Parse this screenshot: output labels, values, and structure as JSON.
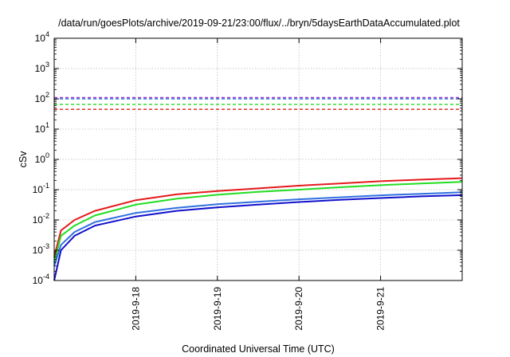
{
  "chart_data": {
    "type": "line",
    "title": "/data/run/goesPlots/archive/2019-09-21/23:00/flux/../bryn/5daysEarthDataAccumulated.plot",
    "xlabel": "Coordinated Universal Time (UTC)",
    "ylabel": "cSv",
    "x_ticks": [
      "2019-9-18",
      "2019-9-19",
      "2019-9-20",
      "2019-9-21"
    ],
    "xlim": [
      "2019-09-17 00:00",
      "2019-09-22 00:00"
    ],
    "y_scale": "log",
    "ylim": [
      0.0001,
      10000
    ],
    "y_ticks": [
      {
        "base": "10",
        "exp": "-4"
      },
      {
        "base": "10",
        "exp": "-3"
      },
      {
        "base": "10",
        "exp": "-2"
      },
      {
        "base": "10",
        "exp": "-1"
      },
      {
        "base": "10",
        "exp": "0"
      },
      {
        "base": "10",
        "exp": "1"
      },
      {
        "base": "10",
        "exp": "2"
      },
      {
        "base": "10",
        "exp": "3"
      },
      {
        "base": "10",
        "exp": "4"
      }
    ],
    "grid": true,
    "series": [
      {
        "color": "#e41a1c",
        "style": "solid",
        "x": [
          "2019-09-17 00:00",
          "2019-09-17 02:00",
          "2019-09-17 06:00",
          "2019-09-17 12:00",
          "2019-09-18 00:00",
          "2019-09-18 12:00",
          "2019-09-19 00:00",
          "2019-09-19 12:00",
          "2019-09-20 00:00",
          "2019-09-20 12:00",
          "2019-09-21 00:00",
          "2019-09-21 12:00",
          "2019-09-22 00:00"
        ],
        "y": [
          0.0006,
          0.0045,
          0.01,
          0.02,
          0.045,
          0.07,
          0.09,
          0.11,
          0.135,
          0.16,
          0.19,
          0.215,
          0.24
        ]
      },
      {
        "color": "#22dd22",
        "style": "solid",
        "x": [
          "2019-09-17 00:00",
          "2019-09-17 02:00",
          "2019-09-17 06:00",
          "2019-09-17 12:00",
          "2019-09-18 00:00",
          "2019-09-18 12:00",
          "2019-09-19 00:00",
          "2019-09-19 12:00",
          "2019-09-20 00:00",
          "2019-09-20 12:00",
          "2019-09-21 00:00",
          "2019-09-21 12:00",
          "2019-09-22 00:00"
        ],
        "y": [
          0.0004,
          0.003,
          0.0065,
          0.014,
          0.032,
          0.05,
          0.068,
          0.085,
          0.1,
          0.12,
          0.14,
          0.16,
          0.18
        ]
      },
      {
        "color": "#3070e0",
        "style": "solid",
        "x": [
          "2019-09-17 00:00",
          "2019-09-17 02:00",
          "2019-09-17 06:00",
          "2019-09-17 12:00",
          "2019-09-18 00:00",
          "2019-09-18 12:00",
          "2019-09-19 00:00",
          "2019-09-19 12:00",
          "2019-09-20 00:00",
          "2019-09-20 12:00",
          "2019-09-21 00:00",
          "2019-09-21 12:00",
          "2019-09-22 00:00"
        ],
        "y": [
          0.0003,
          0.0015,
          0.004,
          0.0085,
          0.017,
          0.025,
          0.033,
          0.04,
          0.048,
          0.056,
          0.065,
          0.073,
          0.082
        ]
      },
      {
        "color": "#1010cc",
        "style": "solid",
        "x": [
          "2019-09-17 00:00",
          "2019-09-17 02:00",
          "2019-09-17 06:00",
          "2019-09-17 12:00",
          "2019-09-18 00:00",
          "2019-09-18 12:00",
          "2019-09-19 00:00",
          "2019-09-19 12:00",
          "2019-09-20 00:00",
          "2019-09-20 12:00",
          "2019-09-21 00:00",
          "2019-09-21 12:00",
          "2019-09-22 00:00"
        ],
        "y": [
          0.0001,
          0.001,
          0.003,
          0.0065,
          0.013,
          0.02,
          0.026,
          0.032,
          0.039,
          0.046,
          0.053,
          0.06,
          0.066
        ]
      },
      {
        "color": "#e41a1c",
        "style": "dashed",
        "x": [
          "2019-09-17 00:00",
          "2019-09-22 00:00"
        ],
        "y": [
          45,
          45
        ]
      },
      {
        "color": "#22dd22",
        "style": "dashed",
        "x": [
          "2019-09-17 00:00",
          "2019-09-22 00:00"
        ],
        "y": [
          65,
          65
        ]
      },
      {
        "color": "#3070e0",
        "style": "dashed",
        "x": [
          "2019-09-17 00:00",
          "2019-09-22 00:00"
        ],
        "y": [
          100,
          100
        ]
      },
      {
        "color": "#9933cc",
        "style": "dashed",
        "x": [
          "2019-09-17 00:00",
          "2019-09-22 00:00"
        ],
        "y": [
          110,
          110
        ]
      }
    ]
  }
}
